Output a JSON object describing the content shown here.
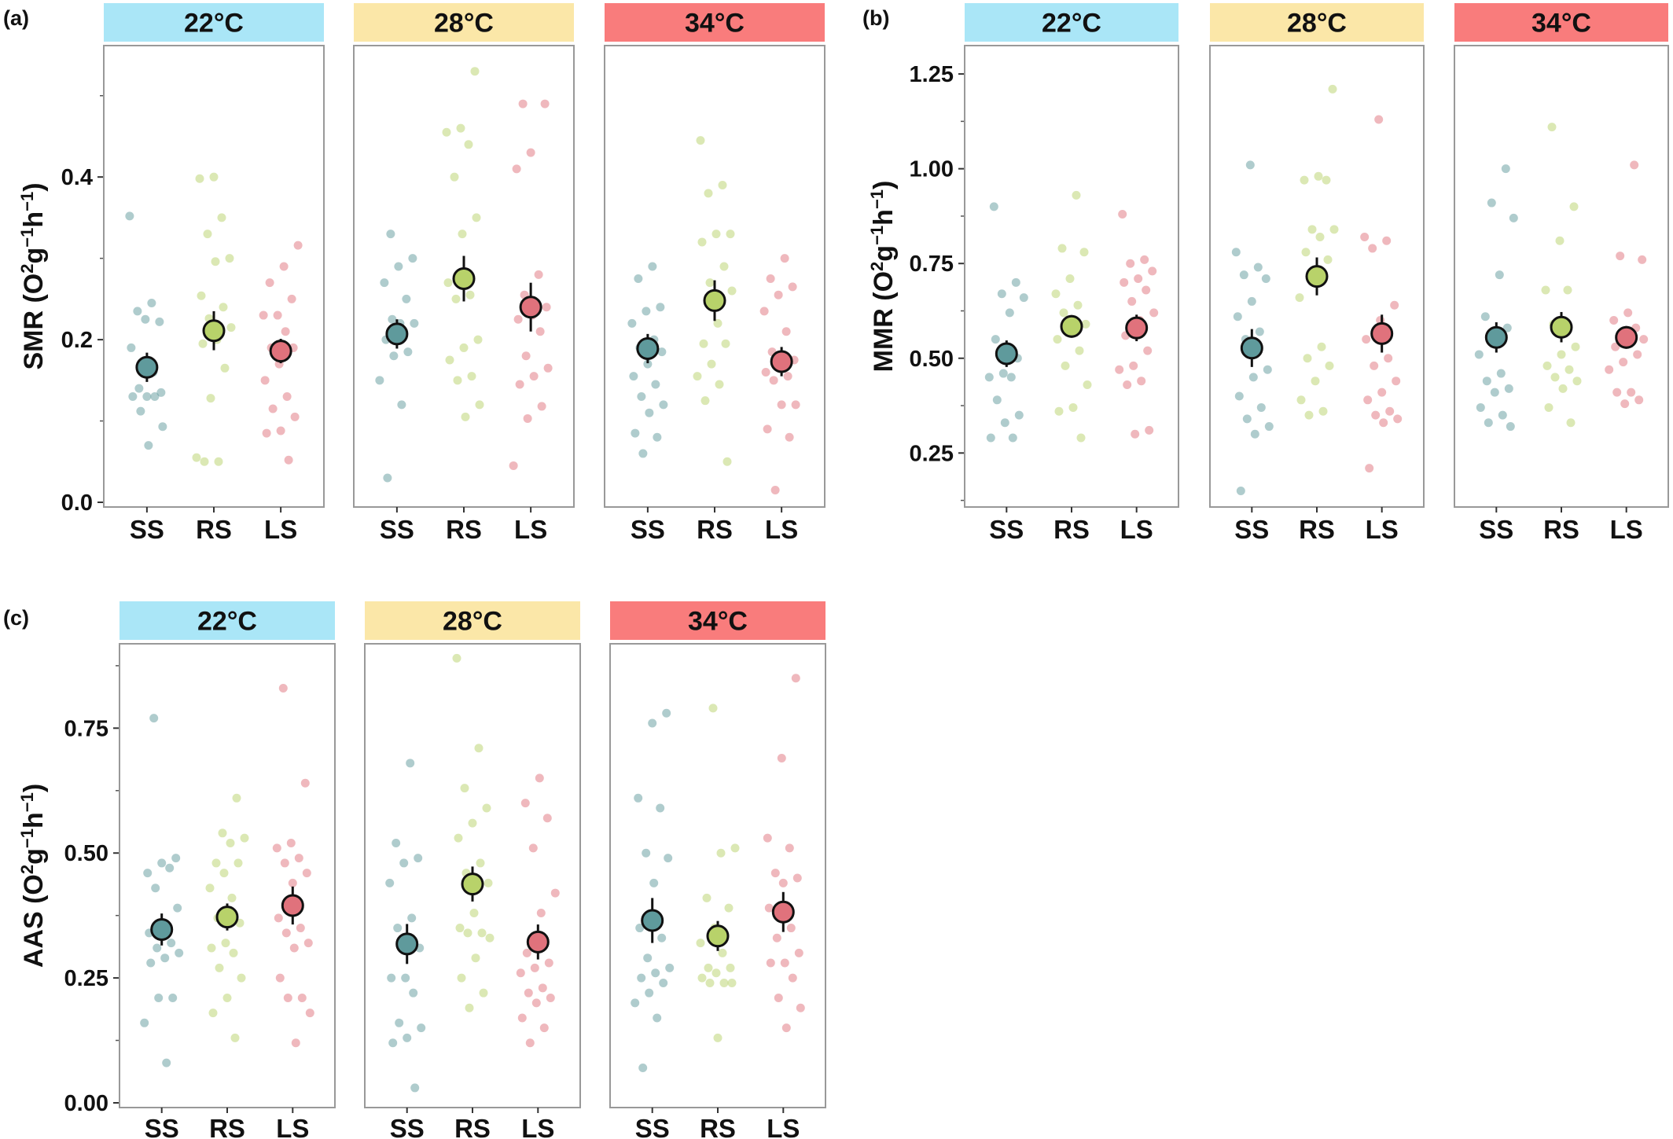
{
  "colors": {
    "SS": "#5f9a9c",
    "RS": "#b8d26a",
    "LS": "#e0727c",
    "strip_22": "#aae6f7",
    "strip_28": "#fbe7a8",
    "strip_34": "#f97c7c"
  },
  "chart_data": [
    {
      "type": "scatter",
      "panel_label": "(a)",
      "ylabel_main": "SMR (O",
      "ylabel_sup1": "2",
      "ylabel_mid": "g",
      "ylabel_sup2": "−1",
      "ylabel_mid2": "h",
      "ylabel_sup3": "−1",
      "ylabel_end": ")",
      "ylim": [
        0,
        0.55
      ],
      "yticks": [
        0,
        0.2,
        0.4
      ],
      "ytick_labels": [
        "0.0",
        "0.2",
        "0.4"
      ],
      "minor_yticks": [
        0.1,
        0.3,
        0.5
      ],
      "categories": [
        "SS",
        "RS",
        "LS"
      ],
      "facets": [
        {
          "label": "22°C",
          "color_key": "strip_22",
          "groups": [
            {
              "name": "SS",
              "mean": 0.166,
              "se": 0.018,
              "points": [
                0.352,
                0.245,
                0.235,
                0.222,
                0.225,
                0.19,
                0.16,
                0.14,
                0.135,
                0.13,
                0.13,
                0.13,
                0.112,
                0.093,
                0.07
              ]
            },
            {
              "name": "RS",
              "mean": 0.211,
              "se": 0.024,
              "points": [
                0.4,
                0.398,
                0.35,
                0.33,
                0.3,
                0.296,
                0.254,
                0.24,
                0.226,
                0.215,
                0.2,
                0.195,
                0.165,
                0.128,
                0.055,
                0.05,
                0.05
              ]
            },
            {
              "name": "LS",
              "mean": 0.186,
              "se": 0.015,
              "points": [
                0.316,
                0.29,
                0.27,
                0.25,
                0.23,
                0.23,
                0.21,
                0.19,
                0.19,
                0.17,
                0.15,
                0.13,
                0.115,
                0.105,
                0.088,
                0.085,
                0.052
              ]
            }
          ]
        },
        {
          "label": "28°C",
          "color_key": "strip_28",
          "groups": [
            {
              "name": "SS",
              "mean": 0.207,
              "se": 0.018,
              "points": [
                0.33,
                0.3,
                0.29,
                0.27,
                0.25,
                0.225,
                0.22,
                0.22,
                0.2,
                0.185,
                0.18,
                0.15,
                0.12,
                0.03
              ]
            },
            {
              "name": "RS",
              "mean": 0.275,
              "se": 0.028,
              "points": [
                0.53,
                0.46,
                0.455,
                0.44,
                0.4,
                0.35,
                0.33,
                0.27,
                0.255,
                0.25,
                0.2,
                0.19,
                0.175,
                0.155,
                0.15,
                0.12,
                0.105
              ]
            },
            {
              "name": "LS",
              "mean": 0.24,
              "se": 0.03,
              "points": [
                0.49,
                0.49,
                0.43,
                0.41,
                0.28,
                0.255,
                0.24,
                0.23,
                0.225,
                0.21,
                0.18,
                0.165,
                0.155,
                0.145,
                0.118,
                0.103,
                0.045
              ]
            }
          ]
        },
        {
          "label": "34°C",
          "color_key": "strip_34",
          "groups": [
            {
              "name": "SS",
              "mean": 0.189,
              "se": 0.018,
              "points": [
                0.29,
                0.275,
                0.24,
                0.235,
                0.22,
                0.2,
                0.19,
                0.185,
                0.17,
                0.155,
                0.145,
                0.13,
                0.12,
                0.11,
                0.085,
                0.08,
                0.06
              ]
            },
            {
              "name": "RS",
              "mean": 0.248,
              "se": 0.025,
              "points": [
                0.445,
                0.39,
                0.38,
                0.33,
                0.33,
                0.32,
                0.29,
                0.27,
                0.26,
                0.22,
                0.195,
                0.195,
                0.17,
                0.155,
                0.145,
                0.125,
                0.05
              ]
            },
            {
              "name": "LS",
              "mean": 0.173,
              "se": 0.018,
              "points": [
                0.3,
                0.275,
                0.265,
                0.255,
                0.235,
                0.21,
                0.185,
                0.175,
                0.165,
                0.16,
                0.155,
                0.15,
                0.12,
                0.12,
                0.09,
                0.08,
                0.015
              ]
            }
          ]
        }
      ]
    },
    {
      "type": "scatter",
      "panel_label": "(b)",
      "ylabel_main": "MMR (O",
      "ylabel_sup1": "2",
      "ylabel_mid": "g",
      "ylabel_sup2": "−1",
      "ylabel_mid2": "h",
      "ylabel_sup3": "−1",
      "ylabel_end": ")",
      "ylim": [
        0.12,
        1.3
      ],
      "yticks": [
        0.25,
        0.5,
        0.75,
        1.0,
        1.25
      ],
      "ytick_labels": [
        "0.25",
        "0.50",
        "0.75",
        "1.00",
        "1.25"
      ],
      "minor_yticks": [
        0.125,
        0.375,
        0.625,
        0.875,
        1.125
      ],
      "categories": [
        "SS",
        "RS",
        "LS"
      ],
      "facets": [
        {
          "label": "22°C",
          "color_key": "strip_22",
          "groups": [
            {
              "name": "SS",
              "mean": 0.512,
              "se": 0.035,
              "points": [
                0.9,
                0.7,
                0.67,
                0.66,
                0.62,
                0.55,
                0.5,
                0.46,
                0.45,
                0.45,
                0.39,
                0.35,
                0.33,
                0.29,
                0.29
              ]
            },
            {
              "name": "RS",
              "mean": 0.584,
              "se": 0.03,
              "points": [
                0.93,
                0.79,
                0.78,
                0.71,
                0.67,
                0.64,
                0.62,
                0.59,
                0.57,
                0.55,
                0.52,
                0.48,
                0.43,
                0.37,
                0.36,
                0.29
              ]
            },
            {
              "name": "LS",
              "mean": 0.58,
              "se": 0.035,
              "points": [
                0.88,
                0.76,
                0.75,
                0.73,
                0.71,
                0.7,
                0.68,
                0.65,
                0.62,
                0.6,
                0.56,
                0.52,
                0.48,
                0.47,
                0.44,
                0.43,
                0.31,
                0.3
              ]
            }
          ]
        },
        {
          "label": "28°C",
          "color_key": "strip_28",
          "groups": [
            {
              "name": "SS",
              "mean": 0.527,
              "se": 0.05,
              "points": [
                1.01,
                0.78,
                0.74,
                0.72,
                0.71,
                0.65,
                0.61,
                0.57,
                0.55,
                0.47,
                0.45,
                0.4,
                0.37,
                0.34,
                0.32,
                0.3,
                0.15
              ]
            },
            {
              "name": "RS",
              "mean": 0.716,
              "se": 0.05,
              "points": [
                1.21,
                0.98,
                0.97,
                0.97,
                0.84,
                0.84,
                0.82,
                0.78,
                0.76,
                0.72,
                0.66,
                0.53,
                0.5,
                0.48,
                0.44,
                0.39,
                0.36,
                0.35
              ]
            },
            {
              "name": "LS",
              "mean": 0.565,
              "se": 0.05,
              "points": [
                1.13,
                0.82,
                0.81,
                0.79,
                0.64,
                0.6,
                0.55,
                0.5,
                0.48,
                0.44,
                0.41,
                0.39,
                0.36,
                0.35,
                0.34,
                0.33,
                0.21
              ]
            }
          ]
        },
        {
          "label": "34°C",
          "color_key": "strip_34",
          "groups": [
            {
              "name": "SS",
              "mean": 0.555,
              "se": 0.04,
              "points": [
                1.0,
                0.91,
                0.87,
                0.72,
                0.61,
                0.58,
                0.56,
                0.51,
                0.46,
                0.44,
                0.42,
                0.41,
                0.37,
                0.35,
                0.33,
                0.32
              ]
            },
            {
              "name": "RS",
              "mean": 0.582,
              "se": 0.04,
              "points": [
                1.11,
                0.9,
                0.81,
                0.68,
                0.68,
                0.59,
                0.53,
                0.51,
                0.48,
                0.47,
                0.45,
                0.44,
                0.42,
                0.37,
                0.33
              ]
            },
            {
              "name": "LS",
              "mean": 0.555,
              "se": 0.03,
              "points": [
                1.01,
                0.77,
                0.76,
                0.62,
                0.6,
                0.58,
                0.56,
                0.55,
                0.54,
                0.53,
                0.51,
                0.49,
                0.47,
                0.41,
                0.41,
                0.39,
                0.38
              ]
            }
          ]
        }
      ]
    },
    {
      "type": "scatter",
      "panel_label": "(c)",
      "ylabel_main": "AAS (O",
      "ylabel_sup1": "2",
      "ylabel_mid": "g",
      "ylabel_sup2": "−1",
      "ylabel_mid2": "h",
      "ylabel_sup3": "−1",
      "ylabel_end": ")",
      "ylim": [
        0,
        0.9
      ],
      "yticks": [
        0,
        0.25,
        0.5,
        0.75
      ],
      "ytick_labels": [
        "0.00",
        "0.25",
        "0.50",
        "0.75"
      ],
      "minor_yticks": [
        0.125,
        0.375,
        0.625,
        0.875
      ],
      "categories": [
        "SS",
        "RS",
        "LS"
      ],
      "facets": [
        {
          "label": "22°C",
          "color_key": "strip_22",
          "groups": [
            {
              "name": "SS",
              "mean": 0.347,
              "se": 0.032,
              "points": [
                0.77,
                0.49,
                0.48,
                0.46,
                0.47,
                0.43,
                0.39,
                0.35,
                0.34,
                0.32,
                0.31,
                0.3,
                0.29,
                0.28,
                0.21,
                0.21,
                0.16,
                0.08
              ]
            },
            {
              "name": "RS",
              "mean": 0.372,
              "se": 0.027,
              "points": [
                0.61,
                0.54,
                0.53,
                0.52,
                0.48,
                0.48,
                0.46,
                0.43,
                0.41,
                0.37,
                0.36,
                0.32,
                0.31,
                0.3,
                0.27,
                0.25,
                0.21,
                0.18,
                0.13
              ]
            },
            {
              "name": "LS",
              "mean": 0.395,
              "se": 0.038,
              "points": [
                0.83,
                0.64,
                0.52,
                0.51,
                0.49,
                0.48,
                0.46,
                0.44,
                0.37,
                0.35,
                0.34,
                0.32,
                0.31,
                0.25,
                0.21,
                0.21,
                0.18,
                0.12
              ]
            }
          ]
        },
        {
          "label": "28°C",
          "color_key": "strip_28",
          "groups": [
            {
              "name": "SS",
              "mean": 0.318,
              "se": 0.04,
              "points": [
                0.68,
                0.52,
                0.49,
                0.48,
                0.44,
                0.37,
                0.35,
                0.31,
                0.25,
                0.25,
                0.22,
                0.16,
                0.15,
                0.13,
                0.12,
                0.03
              ]
            },
            {
              "name": "RS",
              "mean": 0.438,
              "se": 0.035,
              "points": [
                0.89,
                0.71,
                0.63,
                0.59,
                0.56,
                0.53,
                0.48,
                0.46,
                0.44,
                0.38,
                0.35,
                0.34,
                0.34,
                0.33,
                0.29,
                0.25,
                0.22,
                0.19
              ]
            },
            {
              "name": "LS",
              "mean": 0.322,
              "se": 0.035,
              "points": [
                0.65,
                0.6,
                0.57,
                0.51,
                0.42,
                0.38,
                0.3,
                0.28,
                0.27,
                0.26,
                0.23,
                0.22,
                0.21,
                0.2,
                0.17,
                0.15,
                0.12
              ]
            }
          ]
        },
        {
          "label": "34°C",
          "color_key": "strip_34",
          "groups": [
            {
              "name": "SS",
              "mean": 0.365,
              "se": 0.045,
              "points": [
                0.78,
                0.76,
                0.61,
                0.59,
                0.5,
                0.49,
                0.44,
                0.35,
                0.33,
                0.29,
                0.27,
                0.26,
                0.25,
                0.24,
                0.22,
                0.2,
                0.17,
                0.07
              ]
            },
            {
              "name": "RS",
              "mean": 0.334,
              "se": 0.03,
              "points": [
                0.79,
                0.51,
                0.5,
                0.41,
                0.39,
                0.35,
                0.32,
                0.3,
                0.27,
                0.27,
                0.26,
                0.25,
                0.24,
                0.24,
                0.24,
                0.13
              ]
            },
            {
              "name": "LS",
              "mean": 0.382,
              "se": 0.04,
              "points": [
                0.85,
                0.69,
                0.53,
                0.51,
                0.46,
                0.45,
                0.44,
                0.39,
                0.35,
                0.33,
                0.3,
                0.28,
                0.28,
                0.25,
                0.21,
                0.19,
                0.15
              ]
            }
          ]
        }
      ]
    }
  ]
}
